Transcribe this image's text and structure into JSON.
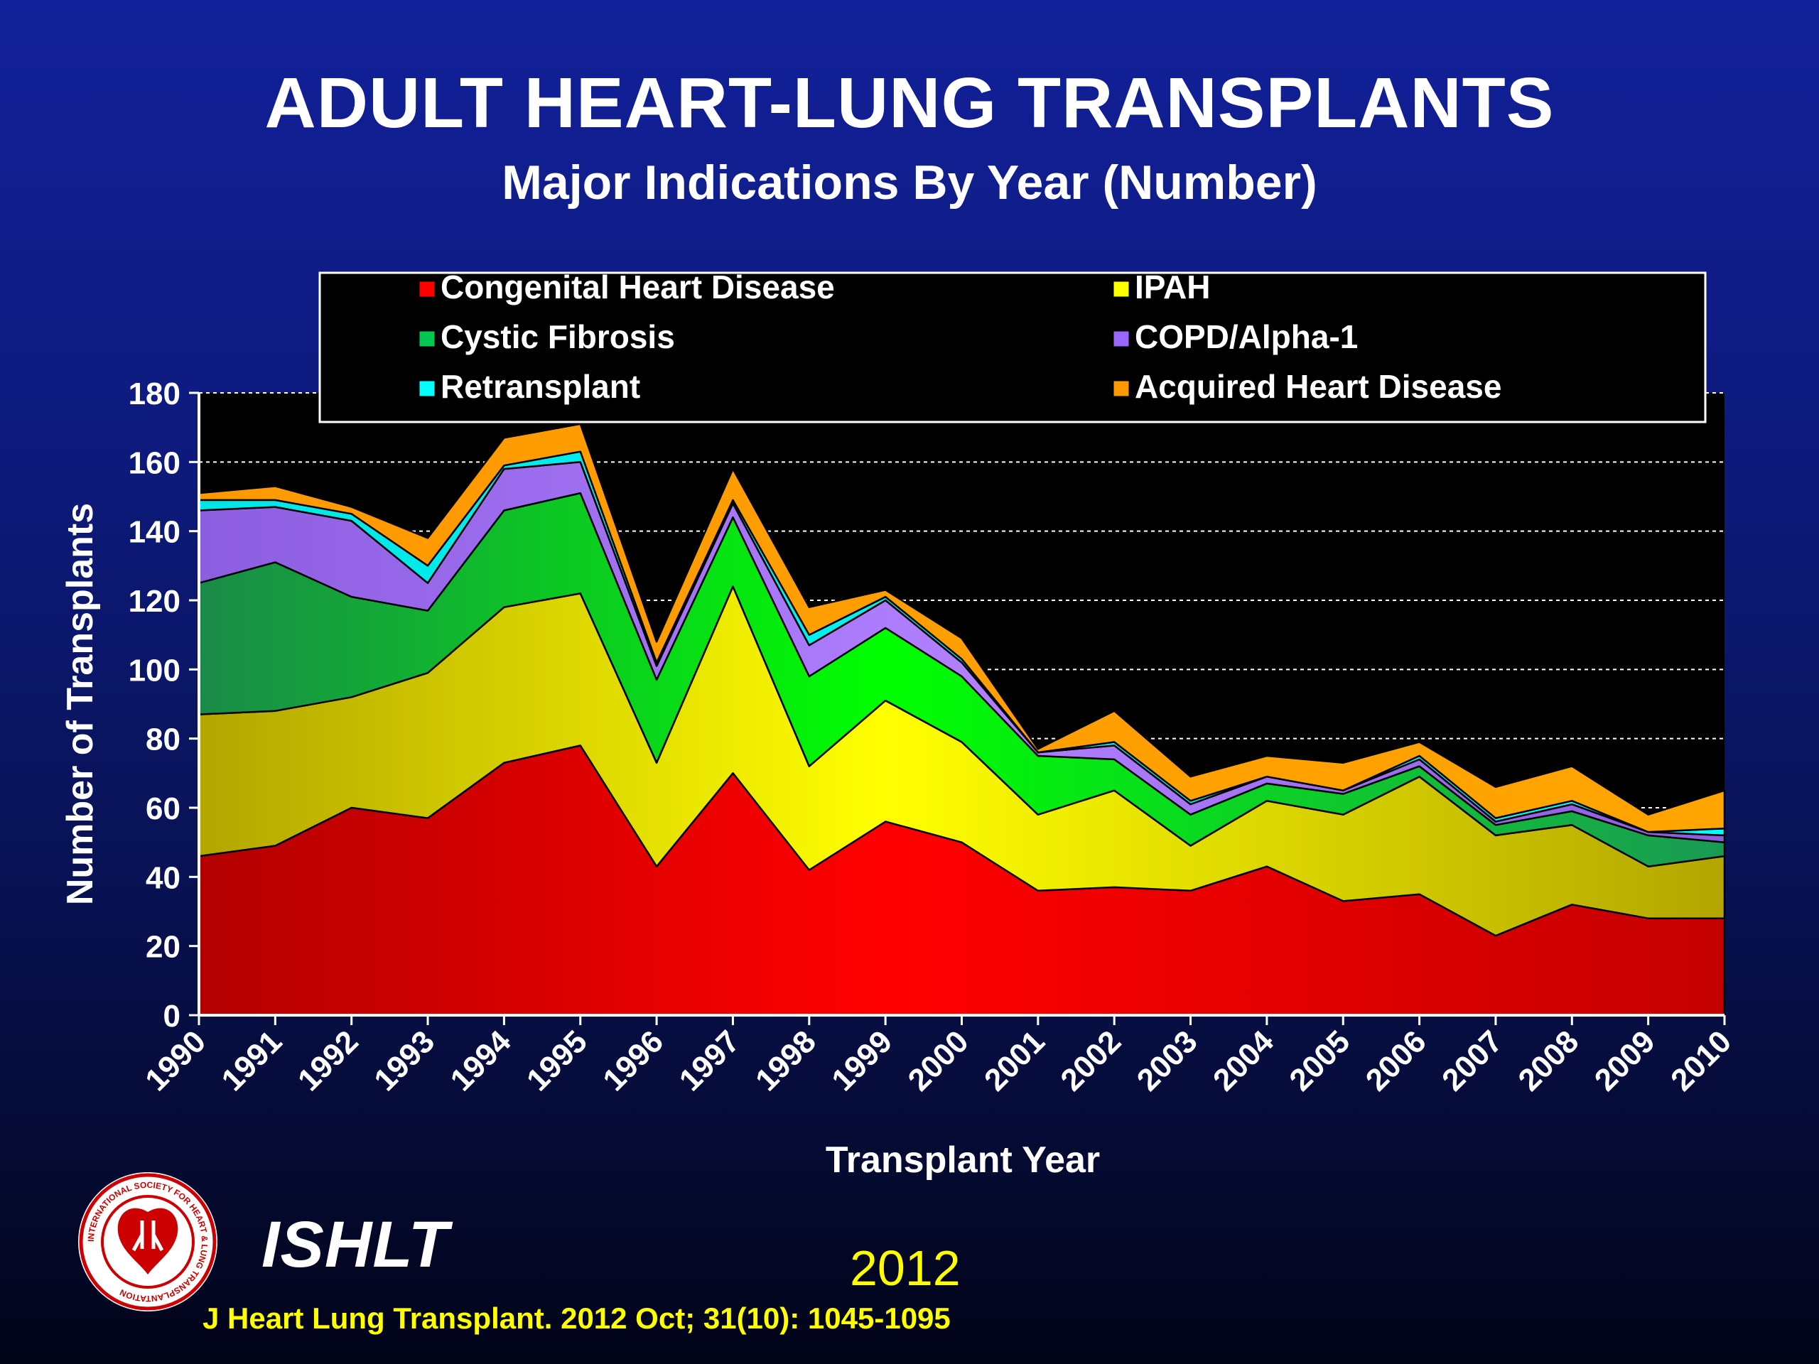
{
  "title": "ADULT HEART-LUNG TRANSPLANTS",
  "subtitle": "Major Indications By Year (Number)",
  "branding": {
    "org": "ISHLT",
    "year": "2012",
    "citation": "J Heart Lung Transplant.  2012 Oct; 31(10): 1045-1095"
  },
  "logo": {
    "text": "INTERNATIONAL SOCIETY FOR HEART & LUNG TRANSPLANTATION",
    "icon": "heart-lung-logo-icon"
  },
  "chart_data": {
    "type": "area",
    "stacked": true,
    "xlabel": "Transplant Year",
    "ylabel": "Number of Transplants",
    "ylim": [
      0,
      180
    ],
    "yticks": [
      0,
      20,
      40,
      60,
      80,
      100,
      120,
      140,
      160,
      180
    ],
    "categories": [
      "1990",
      "1991",
      "1992",
      "1993",
      "1994",
      "1995",
      "1996",
      "1997",
      "1998",
      "1999",
      "2000",
      "2001",
      "2002",
      "2003",
      "2004",
      "2005",
      "2006",
      "2007",
      "2008",
      "2009",
      "2010"
    ],
    "grid": "horizontal-dashed",
    "legend_position": "top",
    "series": [
      {
        "name": "Congenital Heart Disease",
        "color": "#ff0000",
        "values": [
          46,
          49,
          60,
          57,
          73,
          78,
          43,
          70,
          42,
          56,
          50,
          36,
          37,
          36,
          43,
          33,
          35,
          23,
          32,
          28,
          28
        ]
      },
      {
        "name": "IPAH",
        "color": "#ffff00",
        "values": [
          41,
          39,
          32,
          42,
          45,
          44,
          30,
          54,
          30,
          35,
          29,
          22,
          28,
          13,
          19,
          25,
          34,
          29,
          23,
          15,
          18
        ]
      },
      {
        "name": "Cystic Fibrosis",
        "color": "#00c850",
        "values": [
          38,
          43,
          29,
          18,
          28,
          29,
          24,
          20,
          26,
          21,
          19,
          17,
          9,
          9,
          5,
          6,
          3,
          3,
          4,
          9,
          4
        ]
      },
      {
        "name": "COPD/Alpha-1",
        "color": "#9966ff",
        "values": [
          21,
          16,
          22,
          8,
          12,
          9,
          4,
          4,
          9,
          8,
          4,
          1,
          4,
          3,
          2,
          1,
          2,
          1,
          2,
          1,
          2
        ]
      },
      {
        "name": "Retransplant",
        "color": "#00ffff",
        "values": [
          3,
          2,
          2,
          5,
          1,
          3,
          1,
          1,
          3,
          1,
          1,
          0,
          1,
          1,
          0,
          0,
          1,
          1,
          1,
          0,
          2
        ]
      },
      {
        "name": "Acquired Heart Disease",
        "color": "#ff9900",
        "values": [
          2,
          4,
          2,
          8,
          8,
          8,
          6,
          9,
          8,
          2,
          6,
          1,
          9,
          7,
          6,
          8,
          4,
          9,
          10,
          5,
          11
        ]
      }
    ]
  }
}
